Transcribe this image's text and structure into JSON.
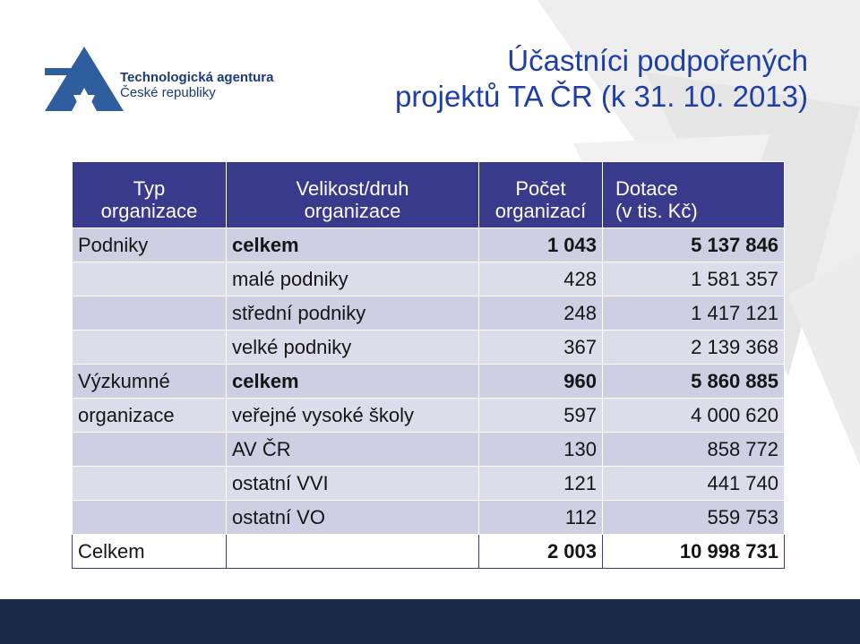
{
  "logo": {
    "line1": "Technologická agentura",
    "line2": "České republiky"
  },
  "title": {
    "line1": "Účastníci podpořených",
    "line2": "projektů TA ČR (k 31. 10. 2013)"
  },
  "table": {
    "headers": [
      [
        "Typ",
        "organizace"
      ],
      [
        "Velikost/druh",
        "organizace"
      ],
      [
        "Počet",
        "organizací"
      ],
      [
        "Dotace",
        "(v tis. Kč)"
      ]
    ],
    "rows": [
      {
        "type": "Podniky",
        "kind": "celkem",
        "count": "1 043",
        "subsidy": "5 137 846",
        "bold": true
      },
      {
        "type": "",
        "kind": "malé podniky",
        "count": "428",
        "subsidy": "1 581 357",
        "bold": false
      },
      {
        "type": "",
        "kind": "střední podniky",
        "count": "248",
        "subsidy": "1 417 121",
        "bold": false
      },
      {
        "type": "",
        "kind": "velké podniky",
        "count": "367",
        "subsidy": "2 139 368",
        "bold": false
      },
      {
        "type": "Výzkumné",
        "kind": "celkem",
        "count": "960",
        "subsidy": "5 860 885",
        "bold": true
      },
      {
        "type": "organizace",
        "kind": "veřejné vysoké školy",
        "count": "597",
        "subsidy": "4 000 620",
        "bold": false
      },
      {
        "type": "",
        "kind": "AV ČR",
        "count": "130",
        "subsidy": "858 772",
        "bold": false
      },
      {
        "type": "",
        "kind": "ostatní VVI",
        "count": "121",
        "subsidy": "441 740",
        "bold": false
      },
      {
        "type": "",
        "kind": "ostatní VO",
        "count": "112",
        "subsidy": "559 753",
        "bold": false
      }
    ],
    "total": {
      "label": "Celkem",
      "count": "2 003",
      "subsidy": "10 998 731"
    }
  },
  "colors": {
    "header_bg": "#3a3a8c",
    "title": "#1f3fa6",
    "row_light": "#dcdceb",
    "row_dark": "#cfcfe3",
    "footer": "#1b2a45"
  }
}
